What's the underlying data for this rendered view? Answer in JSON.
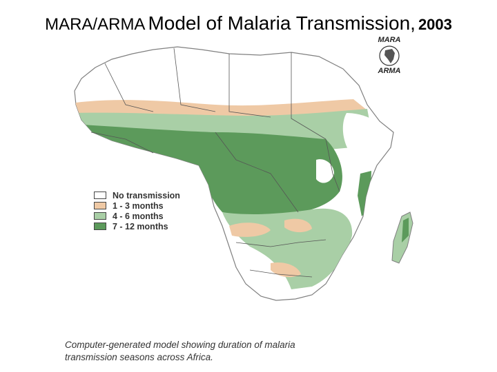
{
  "header": {
    "title_part1": "MARA/ARMA",
    "title_part2": "Model of Malaria Transmission,",
    "title_part3": "2003"
  },
  "logo": {
    "top_text": "MARA",
    "bottom_text": "ARMA",
    "icon": "africa-globe-icon"
  },
  "legend": {
    "items": [
      {
        "label": "No transmission",
        "color": "#ffffff"
      },
      {
        "label": "1 - 3 months",
        "color": "#efc9a5"
      },
      {
        "label": "4 - 6 months",
        "color": "#a9cfa6"
      },
      {
        "label": "7 - 12 months",
        "color": "#5c9a5b"
      }
    ]
  },
  "caption": {
    "line1": "Computer-generated model showing duration of malaria",
    "line2": "transmission seasons across Africa."
  }
}
